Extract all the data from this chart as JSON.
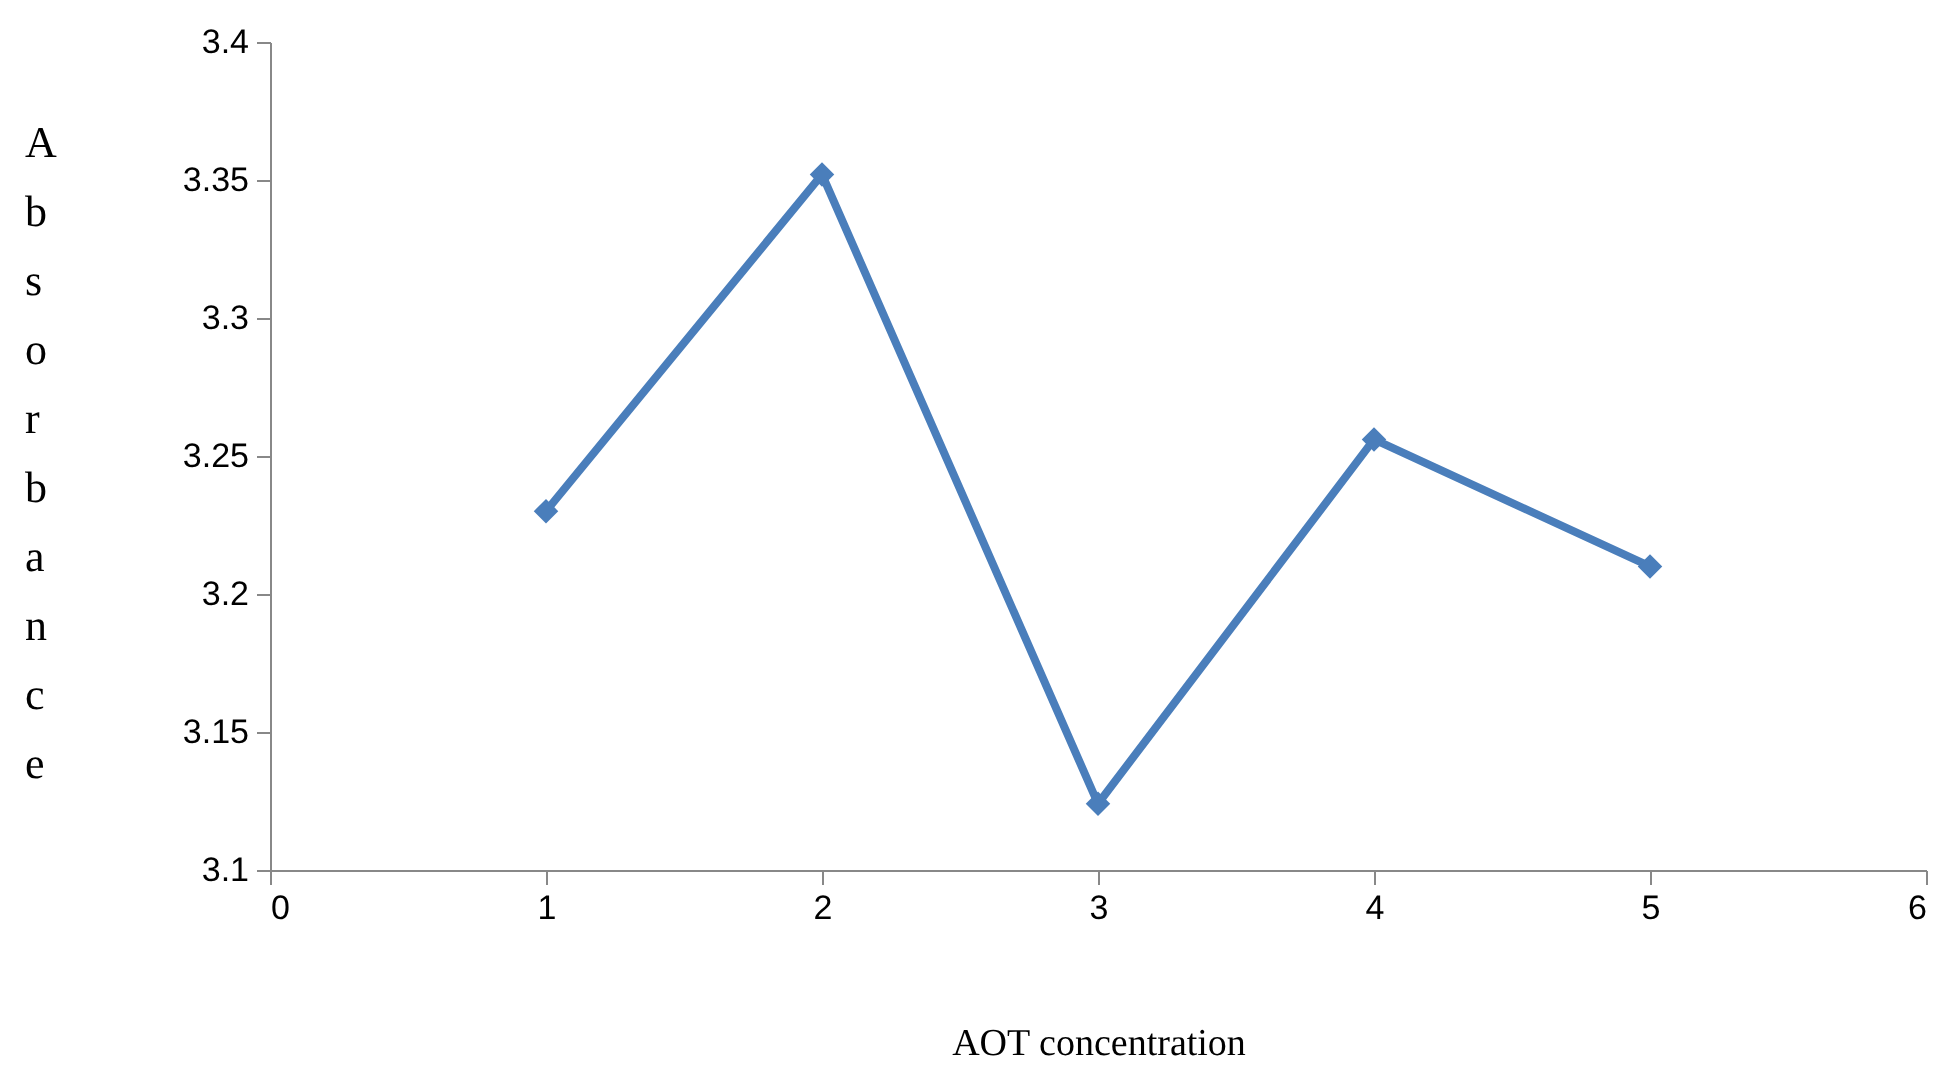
{
  "chart_data": {
    "type": "line",
    "xlabel": "AOT concentration",
    "ylabel": "Absorbance",
    "x": [
      1,
      2,
      3,
      4,
      5
    ],
    "series": [
      {
        "color": "#4a7ebb",
        "values": [
          3.23,
          3.352,
          3.124,
          3.256,
          3.21
        ]
      }
    ],
    "xlim": [
      0,
      6
    ],
    "xticks": [
      0,
      1,
      2,
      3,
      4,
      5,
      6
    ],
    "ylim": [
      3.1,
      3.4
    ],
    "yticks": [
      3.1,
      3.15,
      3.2,
      3.25,
      3.3,
      3.35,
      3.4
    ],
    "grid": false,
    "legend": false,
    "marker": "diamond",
    "line_style": "solid"
  }
}
